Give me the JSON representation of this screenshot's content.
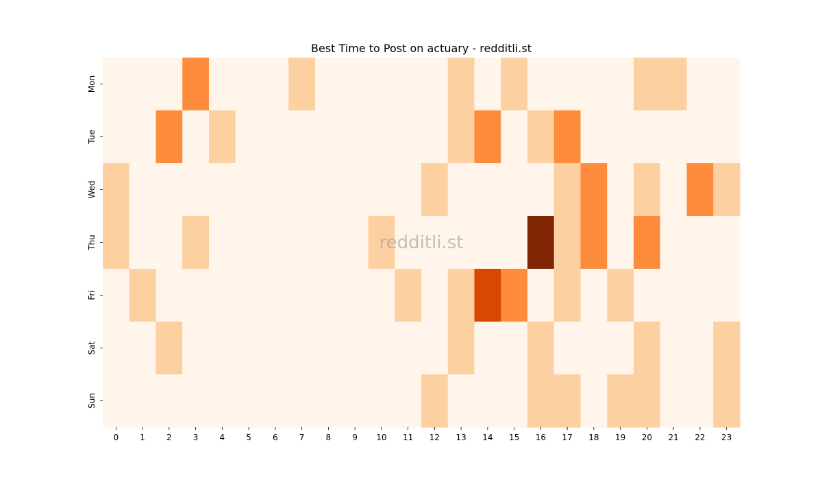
{
  "chart_data": {
    "type": "heatmap",
    "title": "Best Time to Post on actuary - redditli.st",
    "watermark": "redditli.st",
    "x_categories": [
      "0",
      "1",
      "2",
      "3",
      "4",
      "5",
      "6",
      "7",
      "8",
      "9",
      "10",
      "11",
      "12",
      "13",
      "14",
      "15",
      "16",
      "17",
      "18",
      "19",
      "20",
      "21",
      "22",
      "23"
    ],
    "y_categories": [
      "Mon",
      "Tue",
      "Wed",
      "Thu",
      "Fri",
      "Sat",
      "Sun"
    ],
    "values": [
      [
        0,
        0,
        0,
        2,
        0,
        0,
        0,
        1,
        0,
        0,
        0,
        0,
        0,
        1,
        0,
        1,
        0,
        0,
        0,
        0,
        1,
        1,
        0,
        0
      ],
      [
        0,
        0,
        2,
        0,
        1,
        0,
        0,
        0,
        0,
        0,
        0,
        0,
        0,
        1,
        2,
        0,
        1,
        2,
        0,
        0,
        0,
        0,
        0,
        0
      ],
      [
        1,
        0,
        0,
        0,
        0,
        0,
        0,
        0,
        0,
        0,
        0,
        0,
        1,
        0,
        0,
        0,
        0,
        1,
        2,
        0,
        1,
        0,
        2,
        1
      ],
      [
        1,
        0,
        0,
        1,
        0,
        0,
        0,
        0,
        0,
        0,
        1,
        0,
        0,
        0,
        0,
        0,
        4,
        1,
        2,
        0,
        2,
        0,
        0,
        0
      ],
      [
        0,
        1,
        0,
        0,
        0,
        0,
        0,
        0,
        0,
        0,
        0,
        1,
        0,
        1,
        3,
        2,
        0,
        1,
        0,
        1,
        0,
        0,
        0,
        0
      ],
      [
        0,
        0,
        1,
        0,
        0,
        0,
        0,
        0,
        0,
        0,
        0,
        0,
        0,
        1,
        0,
        0,
        1,
        0,
        0,
        0,
        1,
        0,
        0,
        1
      ],
      [
        0,
        0,
        0,
        0,
        0,
        0,
        0,
        0,
        0,
        0,
        0,
        0,
        1,
        0,
        0,
        0,
        1,
        1,
        0,
        1,
        1,
        0,
        0,
        1
      ]
    ],
    "colorscale": [
      "#fff5eb",
      "#fdd0a2",
      "#fd8d3c",
      "#d94801",
      "#7f2704"
    ],
    "colorbar": false,
    "grid": false
  }
}
